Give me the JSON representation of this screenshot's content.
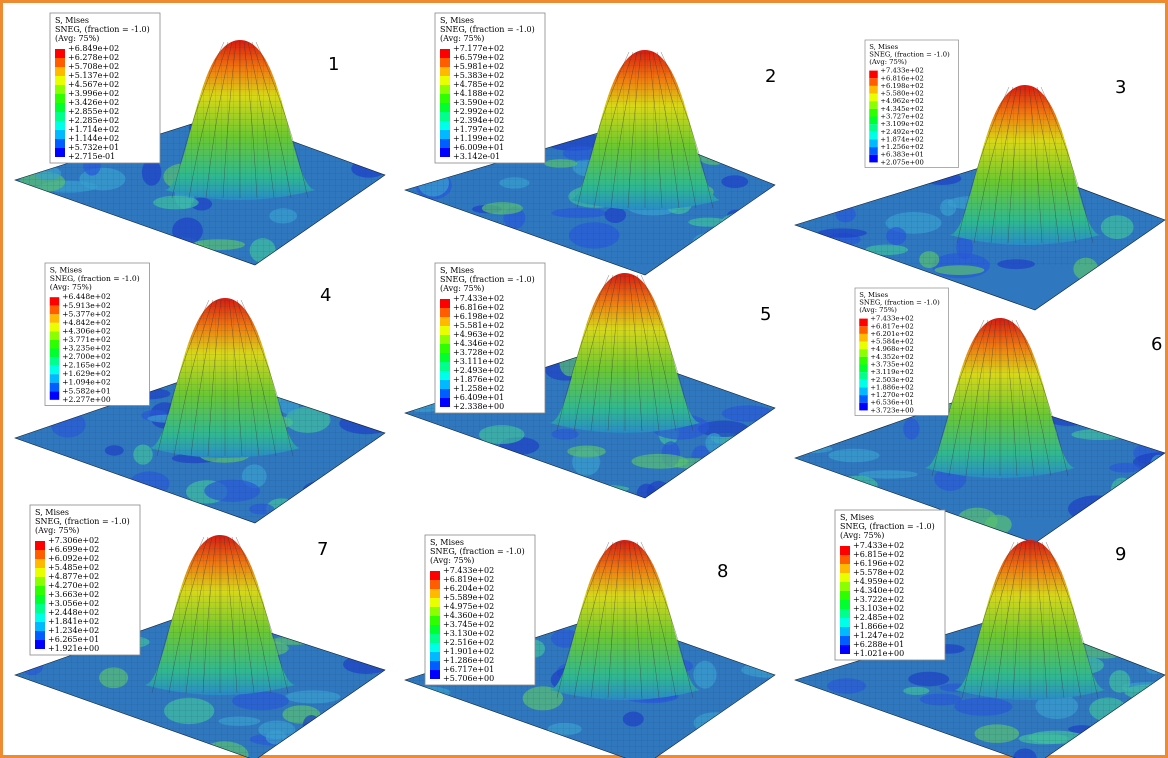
{
  "panels": [
    {
      "label": "1",
      "header": [
        "S, Mises",
        "SNEG, (fraction = -1.0)",
        "(Avg: 75%)"
      ],
      "legend": [
        "+6.849e+02",
        "+6.278e+02",
        "+5.708e+02",
        "+5.137e+02",
        "+4.567e+02",
        "+3.996e+02",
        "+3.426e+02",
        "+2.855e+02",
        "+2.285e+02",
        "+1.714e+02",
        "+1.144e+02",
        "+5.732e+01",
        "+2.715e-01"
      ]
    },
    {
      "label": "2",
      "header": [
        "S, Mises",
        "SNEG, (fraction = -1.0)",
        "(Avg: 75%)"
      ],
      "legend": [
        "+7.177e+02",
        "+6.579e+02",
        "+5.981e+02",
        "+5.383e+02",
        "+4.785e+02",
        "+4.188e+02",
        "+3.590e+02",
        "+2.992e+02",
        "+2.394e+02",
        "+1.797e+02",
        "+1.199e+02",
        "+6.009e+01",
        "+3.142e-01"
      ]
    },
    {
      "label": "3",
      "header": [
        "S, Mises",
        "SNEG, (fraction = -1.0)",
        "(Avg: 75%)"
      ],
      "legend": [
        "+7.433e+02",
        "+6.816e+02",
        "+6.198e+02",
        "+5.580e+02",
        "+4.962e+02",
        "+4.345e+02",
        "+3.727e+02",
        "+3.109e+02",
        "+2.492e+02",
        "+1.874e+02",
        "+1.256e+02",
        "+6.383e+01",
        "+2.075e+00"
      ]
    },
    {
      "label": "4",
      "header": [
        "S, Mises",
        "SNEG, (fraction = -1.0)",
        "(Avg: 75%)"
      ],
      "legend": [
        "+6.448e+02",
        "+5.913e+02",
        "+5.377e+02",
        "+4.842e+02",
        "+4.306e+02",
        "+3.771e+02",
        "+3.235e+02",
        "+2.700e+02",
        "+2.165e+02",
        "+1.629e+02",
        "+1.094e+02",
        "+5.582e+01",
        "+2.277e+00"
      ]
    },
    {
      "label": "5",
      "header": [
        "S, Mises",
        "SNEG, (fraction = -1.0)",
        "(Avg: 75%)"
      ],
      "legend": [
        "+7.433e+02",
        "+6.816e+02",
        "+6.198e+02",
        "+5.581e+02",
        "+4.963e+02",
        "+4.346e+02",
        "+3.728e+02",
        "+3.111e+02",
        "+2.493e+02",
        "+1.876e+02",
        "+1.258e+02",
        "+6.409e+01",
        "+2.338e+00"
      ]
    },
    {
      "label": "6",
      "header": [
        "S, Mises",
        "SNEG, (fraction = -1.0)",
        "(Avg: 75%)"
      ],
      "legend": [
        "+7.433e+02",
        "+6.817e+02",
        "+6.201e+02",
        "+5.584e+02",
        "+4.968e+02",
        "+4.352e+02",
        "+3.735e+02",
        "+3.119e+02",
        "+2.503e+02",
        "+1.886e+02",
        "+1.270e+02",
        "+6.536e+01",
        "+3.723e+00"
      ]
    },
    {
      "label": "7",
      "header": [
        "S, Mises",
        "SNEG, (fraction = -1.0)",
        "(Avg: 75%)"
      ],
      "legend": [
        "+7.306e+02",
        "+6.699e+02",
        "+6.092e+02",
        "+5.485e+02",
        "+4.877e+02",
        "+4.270e+02",
        "+3.663e+02",
        "+3.056e+02",
        "+2.448e+02",
        "+1.841e+02",
        "+1.234e+02",
        "+6.265e+01",
        "+1.921e+00"
      ]
    },
    {
      "label": "8",
      "header": [
        "S, Mises",
        "SNEG, (fraction = -1.0)",
        "(Avg: 75%)"
      ],
      "legend": [
        "+7.433e+02",
        "+6.819e+02",
        "+6.204e+02",
        "+5.589e+02",
        "+4.975e+02",
        "+4.360e+02",
        "+3.745e+02",
        "+3.130e+02",
        "+2.516e+02",
        "+1.901e+02",
        "+1.286e+02",
        "+6.717e+01",
        "+5.706e+00"
      ]
    },
    {
      "label": "9",
      "header": [
        "S, Mises",
        "SNEG, (fraction = -1.0)",
        "(Avg: 75%)"
      ],
      "legend": [
        "+7.433e+02",
        "+6.815e+02",
        "+6.196e+02",
        "+5.578e+02",
        "+4.959e+02",
        "+4.340e+02",
        "+3.722e+02",
        "+3.103e+02",
        "+2.485e+02",
        "+1.866e+02",
        "+1.247e+02",
        "+6.288e+01",
        "+1.021e+00"
      ]
    }
  ]
}
